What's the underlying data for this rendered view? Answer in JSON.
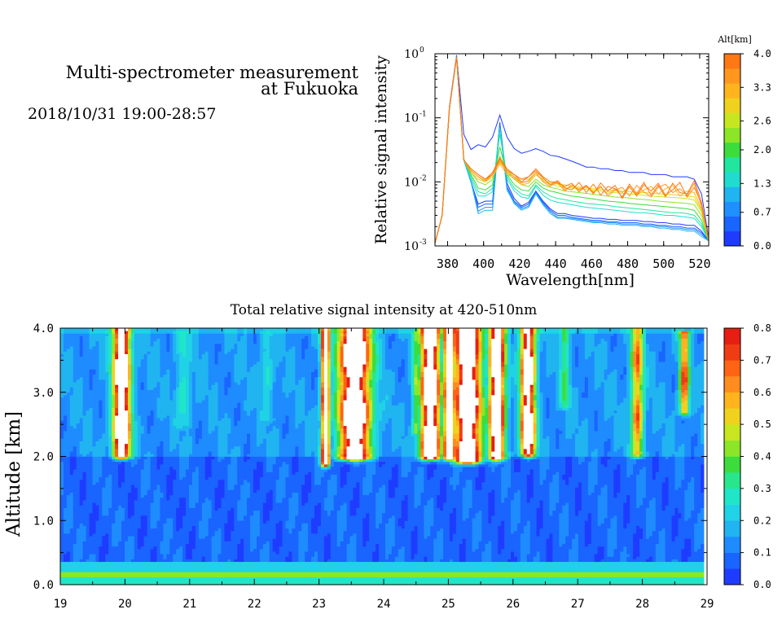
{
  "header": {
    "title_line1": "Multi-spectrometer measurement",
    "title_line2": "at Fukuoka",
    "datetime": "2018/10/31 19:00-28:57"
  },
  "colors": {
    "altitude_scale": [
      "#1e3cff",
      "#1a64ff",
      "#1e90ff",
      "#20b4f0",
      "#20dcd0",
      "#20e6a0",
      "#3cdc3c",
      "#8ce628",
      "#c8e620",
      "#f0d21e",
      "#ffb41e",
      "#ff961e",
      "#ff7814"
    ],
    "intensity_scale": [
      "#1e3cff",
      "#1a64ff",
      "#1e8cff",
      "#20b4f0",
      "#20d2e6",
      "#20e6c8",
      "#28e68c",
      "#3cdc3c",
      "#8ce628",
      "#c8e620",
      "#f0d21e",
      "#ffb41e",
      "#ff8c1e",
      "#ff6414",
      "#f03c14",
      "#e61e14"
    ]
  },
  "chart_data": [
    {
      "type": "line",
      "title": "",
      "xlabel": "Wavelength[nm]",
      "ylabel": "Relative signal intensity",
      "xlim": [
        373,
        525
      ],
      "ylim": [
        0.001,
        1
      ],
      "yscale": "log",
      "xticks": [
        "380",
        "400",
        "420",
        "440",
        "460",
        "480",
        "500",
        "520"
      ],
      "yticks": [
        {
          "base": "10",
          "exp": "0"
        },
        {
          "base": "10",
          "exp": "-1"
        },
        {
          "base": "10",
          "exp": "-2"
        },
        {
          "base": "10",
          "exp": "-3"
        }
      ],
      "colorbar": {
        "label": "Alt[km]",
        "range": [
          0,
          4.0
        ],
        "ticks": [
          "0.0",
          "0.7",
          "1.3",
          "2.0",
          "2.6",
          "3.3",
          "4.0"
        ]
      },
      "x": [
        373,
        377,
        381,
        385,
        389,
        393,
        397,
        401,
        405,
        409,
        413,
        417,
        421,
        425,
        429,
        433,
        437,
        441,
        445,
        449,
        453,
        457,
        461,
        465,
        469,
        473,
        477,
        481,
        485,
        489,
        493,
        497,
        501,
        505,
        509,
        513,
        517,
        521,
        525
      ],
      "series": [
        {
          "alt": 0.0,
          "values": [
            0.0011,
            0.003,
            0.15,
            0.95,
            0.055,
            0.032,
            0.038,
            0.035,
            0.05,
            0.11,
            0.05,
            0.033,
            0.028,
            0.03,
            0.033,
            0.03,
            0.026,
            0.025,
            0.023,
            0.021,
            0.019,
            0.017,
            0.017,
            0.016,
            0.016,
            0.015,
            0.015,
            0.014,
            0.014,
            0.014,
            0.013,
            0.013,
            0.013,
            0.012,
            0.012,
            0.012,
            0.011,
            0.0065,
            0.0013
          ]
        },
        {
          "alt": 0.3,
          "values": [
            0.0011,
            0.003,
            0.14,
            0.9,
            0.022,
            0.01,
            0.0045,
            0.005,
            0.005,
            0.085,
            0.0095,
            0.0055,
            0.0042,
            0.0048,
            0.0072,
            0.005,
            0.0038,
            0.0032,
            0.0032,
            0.003,
            0.0029,
            0.0028,
            0.0027,
            0.0027,
            0.0026,
            0.0026,
            0.0025,
            0.0025,
            0.0025,
            0.0024,
            0.0024,
            0.0023,
            0.0023,
            0.0022,
            0.0022,
            0.0021,
            0.0021,
            0.0017,
            0.0012
          ]
        },
        {
          "alt": 0.5,
          "values": [
            0.0011,
            0.003,
            0.14,
            0.9,
            0.022,
            0.01,
            0.004,
            0.0045,
            0.0045,
            0.08,
            0.0085,
            0.005,
            0.004,
            0.0045,
            0.007,
            0.0048,
            0.0036,
            0.003,
            0.003,
            0.0028,
            0.0027,
            0.0026,
            0.0025,
            0.0025,
            0.0024,
            0.0024,
            0.0023,
            0.0023,
            0.0023,
            0.0022,
            0.0022,
            0.0021,
            0.0021,
            0.002,
            0.002,
            0.0019,
            0.0019,
            0.0016,
            0.0012
          ]
        },
        {
          "alt": 0.8,
          "values": [
            0.0011,
            0.003,
            0.14,
            0.9,
            0.022,
            0.01,
            0.0035,
            0.004,
            0.004,
            0.075,
            0.008,
            0.0048,
            0.0038,
            0.0042,
            0.0068,
            0.0046,
            0.0034,
            0.0028,
            0.0028,
            0.0027,
            0.0026,
            0.0025,
            0.0024,
            0.0024,
            0.0023,
            0.0023,
            0.0022,
            0.0022,
            0.0022,
            0.0021,
            0.0021,
            0.002,
            0.002,
            0.0019,
            0.0019,
            0.0018,
            0.0018,
            0.0015,
            0.0012
          ]
        },
        {
          "alt": 1.0,
          "values": [
            0.0011,
            0.003,
            0.14,
            0.9,
            0.022,
            0.01,
            0.0032,
            0.0036,
            0.0036,
            0.07,
            0.0075,
            0.0046,
            0.0036,
            0.004,
            0.0065,
            0.0044,
            0.0032,
            0.0027,
            0.0027,
            0.0026,
            0.0025,
            0.0024,
            0.0023,
            0.0023,
            0.0022,
            0.0022,
            0.0021,
            0.0021,
            0.0021,
            0.002,
            0.002,
            0.0019,
            0.0019,
            0.0018,
            0.0018,
            0.0017,
            0.0017,
            0.0014,
            0.0012
          ]
        },
        {
          "alt": 1.3,
          "values": [
            0.0011,
            0.003,
            0.14,
            0.9,
            0.022,
            0.011,
            0.006,
            0.006,
            0.007,
            0.07,
            0.011,
            0.0072,
            0.0058,
            0.0055,
            0.0085,
            0.0062,
            0.0052,
            0.0048,
            0.0046,
            0.0044,
            0.0042,
            0.004,
            0.0039,
            0.0038,
            0.0037,
            0.0036,
            0.0035,
            0.0034,
            0.0033,
            0.0033,
            0.0032,
            0.0031,
            0.003,
            0.003,
            0.0029,
            0.0028,
            0.0027,
            0.002,
            0.0012
          ]
        },
        {
          "alt": 1.6,
          "values": [
            0.0011,
            0.003,
            0.14,
            0.88,
            0.023,
            0.012,
            0.007,
            0.0065,
            0.008,
            0.055,
            0.012,
            0.008,
            0.0065,
            0.006,
            0.009,
            0.007,
            0.006,
            0.0055,
            0.0053,
            0.005,
            0.0048,
            0.0046,
            0.0045,
            0.0044,
            0.0043,
            0.0041,
            0.004,
            0.0039,
            0.0038,
            0.0037,
            0.0036,
            0.0035,
            0.0034,
            0.0033,
            0.0033,
            0.0032,
            0.003,
            0.0022,
            0.0012
          ]
        },
        {
          "alt": 2.0,
          "values": [
            0.0011,
            0.003,
            0.14,
            0.88,
            0.022,
            0.013,
            0.008,
            0.0075,
            0.009,
            0.035,
            0.013,
            0.009,
            0.0075,
            0.0072,
            0.01,
            0.008,
            0.0072,
            0.0068,
            0.0063,
            0.006,
            0.0058,
            0.0056,
            0.0054,
            0.0052,
            0.005,
            0.0049,
            0.0048,
            0.0046,
            0.0045,
            0.0044,
            0.0043,
            0.0042,
            0.0041,
            0.004,
            0.0039,
            0.0038,
            0.0036,
            0.0025,
            0.0012
          ]
        },
        {
          "alt": 2.3,
          "values": [
            0.0011,
            0.003,
            0.14,
            0.88,
            0.022,
            0.014,
            0.01,
            0.009,
            0.011,
            0.025,
            0.014,
            0.011,
            0.009,
            0.0085,
            0.011,
            0.009,
            0.0082,
            0.0078,
            0.0072,
            0.007,
            0.0068,
            0.0066,
            0.0064,
            0.0062,
            0.006,
            0.0058,
            0.0057,
            0.0056,
            0.0054,
            0.0053,
            0.0052,
            0.005,
            0.0049,
            0.0048,
            0.0047,
            0.0046,
            0.0044,
            0.003,
            0.0012
          ]
        },
        {
          "alt": 2.6,
          "values": [
            0.0011,
            0.003,
            0.14,
            0.88,
            0.022,
            0.015,
            0.012,
            0.01,
            0.013,
            0.022,
            0.015,
            0.012,
            0.01,
            0.01,
            0.013,
            0.011,
            0.0095,
            0.0085,
            0.0082,
            0.008,
            0.0078,
            0.0076,
            0.0074,
            0.0072,
            0.007,
            0.0068,
            0.0066,
            0.0065,
            0.0064,
            0.0062,
            0.006,
            0.0059,
            0.0058,
            0.0057,
            0.0056,
            0.0055,
            0.0052,
            0.0034,
            0.0012
          ]
        },
        {
          "alt": 2.9,
          "values": [
            0.0011,
            0.003,
            0.14,
            0.88,
            0.022,
            0.016,
            0.013,
            0.011,
            0.014,
            0.02,
            0.015,
            0.013,
            0.011,
            0.011,
            0.014,
            0.012,
            0.01,
            0.0092,
            0.009,
            0.0085,
            0.0083,
            0.008,
            0.0078,
            0.0076,
            0.0075,
            0.0073,
            0.0072,
            0.007,
            0.0069,
            0.0068,
            0.0067,
            0.0065,
            0.0064,
            0.0063,
            0.0062,
            0.006,
            0.0058,
            0.0036,
            0.0012
          ]
        },
        {
          "alt": 3.2,
          "values": [
            0.0011,
            0.003,
            0.14,
            0.88,
            0.022,
            0.014,
            0.011,
            0.01,
            0.012,
            0.019,
            0.013,
            0.0115,
            0.009,
            0.0095,
            0.013,
            0.0105,
            0.009,
            0.0095,
            0.0075,
            0.0085,
            0.0078,
            0.0088,
            0.007,
            0.0082,
            0.0065,
            0.0078,
            0.0068,
            0.0083,
            0.0062,
            0.0075,
            0.0085,
            0.0065,
            0.0078,
            0.0088,
            0.006,
            0.0072,
            0.0068,
            0.0038,
            0.0012
          ]
        },
        {
          "alt": 3.5,
          "values": [
            0.0011,
            0.003,
            0.14,
            0.88,
            0.022,
            0.015,
            0.012,
            0.0105,
            0.013,
            0.021,
            0.014,
            0.012,
            0.0095,
            0.0105,
            0.014,
            0.01,
            0.0085,
            0.01,
            0.0072,
            0.009,
            0.0075,
            0.0085,
            0.0068,
            0.0086,
            0.006,
            0.0074,
            0.0082,
            0.006,
            0.0088,
            0.007,
            0.0058,
            0.0082,
            0.0092,
            0.0068,
            0.0078,
            0.0062,
            0.0095,
            0.0042,
            0.0012
          ]
        },
        {
          "alt": 3.8,
          "values": [
            0.0011,
            0.003,
            0.14,
            0.88,
            0.022,
            0.016,
            0.013,
            0.011,
            0.013,
            0.023,
            0.015,
            0.013,
            0.01,
            0.012,
            0.015,
            0.0115,
            0.009,
            0.0105,
            0.008,
            0.0075,
            0.0098,
            0.0068,
            0.0092,
            0.0062,
            0.0085,
            0.0078,
            0.0058,
            0.0092,
            0.0065,
            0.0098,
            0.0062,
            0.0088,
            0.0058,
            0.0095,
            0.0068,
            0.0065,
            0.0105,
            0.0048,
            0.0012
          ]
        },
        {
          "alt": 4.0,
          "values": [
            0.0011,
            0.003,
            0.14,
            0.88,
            0.022,
            0.016,
            0.013,
            0.011,
            0.014,
            0.024,
            0.016,
            0.013,
            0.011,
            0.012,
            0.016,
            0.012,
            0.01,
            0.0098,
            0.0085,
            0.0095,
            0.007,
            0.0088,
            0.0065,
            0.0096,
            0.0072,
            0.0088,
            0.0055,
            0.0085,
            0.006,
            0.009,
            0.0072,
            0.0095,
            0.0062,
            0.0075,
            0.0098,
            0.0058,
            0.0082,
            0.0045,
            0.0012
          ]
        }
      ]
    },
    {
      "type": "heatmap",
      "title": "Total relative signal intensity at 420-510nm",
      "xlabel": "",
      "ylabel": "Altitude [km]",
      "xlim": [
        19,
        29
      ],
      "ylim": [
        0,
        4.0
      ],
      "data_x_end": 28.95,
      "xticks": [
        "19",
        "20",
        "21",
        "22",
        "23",
        "24",
        "25",
        "26",
        "27",
        "28",
        "29"
      ],
      "yticks": [
        "0.0",
        "1.0",
        "2.0",
        "3.0",
        "4.0"
      ],
      "colorbar": {
        "range": [
          0,
          0.8
        ],
        "ticks": [
          "0.0",
          "0.1",
          "0.2",
          "0.3",
          "0.4",
          "0.5",
          "0.6",
          "0.7",
          "0.8"
        ],
        "saturation_color": "#ffffff"
      },
      "layers": [
        {
          "alt_bottom": 0.0,
          "alt_top": 0.12,
          "value": 0.28
        },
        {
          "alt_bottom": 0.12,
          "alt_top": 0.2,
          "value": 0.42
        },
        {
          "alt_bottom": 0.2,
          "alt_top": 0.26,
          "value": 0.2
        },
        {
          "alt_bottom": 0.26,
          "alt_top": 0.36,
          "value": 0.24
        },
        {
          "alt_bottom": 0.36,
          "alt_top": 2.0,
          "value": 0.08
        },
        {
          "alt_bottom": 2.0,
          "alt_top": 4.0,
          "value": 0.14
        }
      ],
      "plumes": [
        {
          "time": 19.95,
          "width": 0.14,
          "alt_bottom": 2.02,
          "alt_top": 4.0,
          "peak": 0.95
        },
        {
          "time": 23.1,
          "width": 0.07,
          "alt_bottom": 1.9,
          "alt_top": 4.0,
          "peak": 0.85
        },
        {
          "time": 23.55,
          "width": 0.26,
          "alt_bottom": 2.0,
          "alt_top": 4.0,
          "peak": 0.95
        },
        {
          "time": 24.5,
          "width": 0.07,
          "alt_bottom": 2.4,
          "alt_top": 3.9,
          "peak": 0.35
        },
        {
          "time": 24.72,
          "width": 0.16,
          "alt_bottom": 2.0,
          "alt_top": 4.0,
          "peak": 0.95
        },
        {
          "time": 25.02,
          "width": 0.1,
          "alt_bottom": 2.0,
          "alt_top": 4.0,
          "peak": 0.9
        },
        {
          "time": 25.3,
          "width": 0.22,
          "alt_bottom": 1.95,
          "alt_top": 4.0,
          "peak": 0.95
        },
        {
          "time": 25.75,
          "width": 0.13,
          "alt_bottom": 2.0,
          "alt_top": 4.0,
          "peak": 0.95
        },
        {
          "time": 26.23,
          "width": 0.12,
          "alt_bottom": 2.05,
          "alt_top": 4.0,
          "peak": 0.9
        },
        {
          "time": 26.8,
          "width": 0.08,
          "alt_bottom": 2.8,
          "alt_top": 4.0,
          "peak": 0.3
        },
        {
          "time": 27.92,
          "width": 0.1,
          "alt_bottom": 2.05,
          "alt_top": 4.0,
          "peak": 0.55
        },
        {
          "time": 28.65,
          "width": 0.08,
          "alt_bottom": 2.7,
          "alt_top": 3.9,
          "peak": 0.6
        },
        {
          "time": 20.9,
          "width": 0.12,
          "alt_bottom": 2.5,
          "alt_top": 3.9,
          "peak": 0.22
        },
        {
          "time": 22.2,
          "width": 0.1,
          "alt_bottom": 2.6,
          "alt_top": 3.9,
          "peak": 0.2
        }
      ]
    }
  ]
}
